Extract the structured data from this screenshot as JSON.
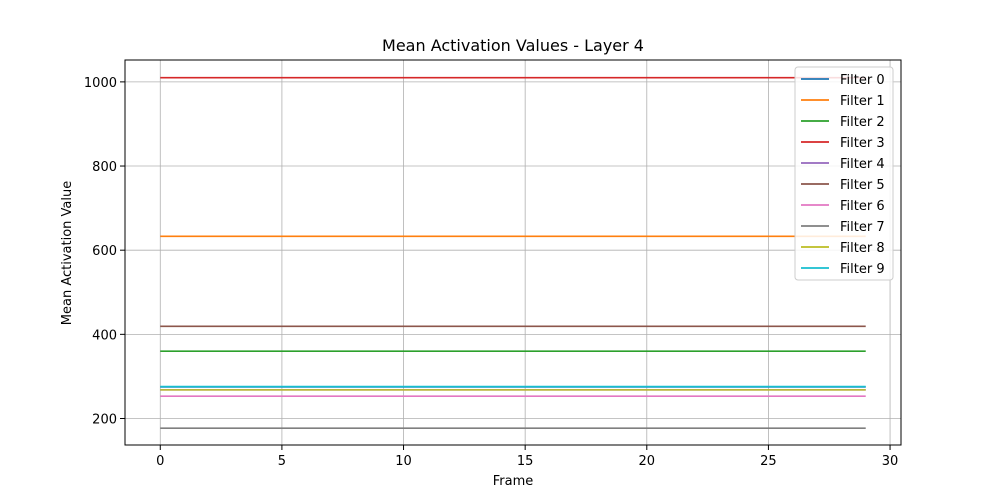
{
  "chart_data": {
    "type": "line",
    "title": "Mean Activation Values - Layer 4",
    "xlabel": "Frame",
    "ylabel": "Mean Activation Value",
    "xlim": [
      -1.45,
      30.45
    ],
    "ylim": [
      137,
      1052
    ],
    "xticks": [
      0,
      5,
      10,
      15,
      20,
      25,
      30
    ],
    "yticks": [
      200,
      400,
      600,
      800,
      1000
    ],
    "grid": true,
    "legend_position": "upper right",
    "x_range": [
      0,
      29
    ],
    "series": [
      {
        "name": "Filter 0",
        "color": "#1f77b4",
        "value": 275
      },
      {
        "name": "Filter 1",
        "color": "#ff7f0e",
        "value": 633
      },
      {
        "name": "Filter 2",
        "color": "#2ca02c",
        "value": 360
      },
      {
        "name": "Filter 3",
        "color": "#d62728",
        "value": 1010
      },
      {
        "name": "Filter 4",
        "color": "#9467bd",
        "value": 268
      },
      {
        "name": "Filter 5",
        "color": "#8c564b",
        "value": 419
      },
      {
        "name": "Filter 6",
        "color": "#e377c2",
        "value": 253
      },
      {
        "name": "Filter 7",
        "color": "#7f7f7f",
        "value": 177
      },
      {
        "name": "Filter 8",
        "color": "#bcbd22",
        "value": 268
      },
      {
        "name": "Filter 9",
        "color": "#17becf",
        "value": 276
      }
    ]
  }
}
